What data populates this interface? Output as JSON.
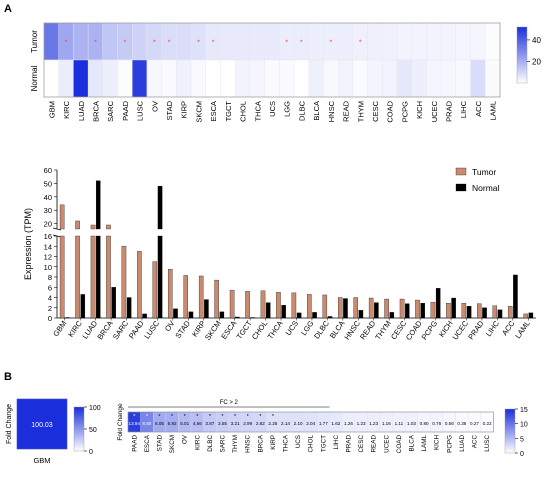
{
  "panel_labels": {
    "a": "A",
    "b": "B"
  },
  "colors": {
    "tumor_bar": "#c98a6e",
    "normal_bar": "#000000",
    "heat_low": "#ffffff",
    "heat_high": "#1a2fdb",
    "star": "#ff3b3b"
  },
  "chart_data": [
    {
      "type": "heatmap",
      "rows": [
        "Tumor",
        "Normal"
      ],
      "columns": [
        "GBM",
        "KIRC",
        "LUAD",
        "BRCA",
        "SARC",
        "PAAD",
        "LUSC",
        "OV",
        "STAD",
        "KIRP",
        "SKCM",
        "ESCA",
        "TGCT",
        "CHOL",
        "THCA",
        "UCS",
        "LGG",
        "DLBC",
        "BLCA",
        "HNSC",
        "READ",
        "THYM",
        "CESC",
        "COAD",
        "PCPG",
        "KICH",
        "UCEC",
        "PRAD",
        "LIHC",
        "ACC",
        "LAML"
      ],
      "values": [
        [
          34,
          22,
          19,
          19,
          14,
          13,
          11,
          9.5,
          8.3,
          8.2,
          7.4,
          5.4,
          5.2,
          5.3,
          5.0,
          4.9,
          4.6,
          4.5,
          4.0,
          4.0,
          3.9,
          3.7,
          3.7,
          3.5,
          3.1,
          2.9,
          2.9,
          2.8,
          2.4,
          2.3,
          0.8
        ],
        [
          0.1,
          4.6,
          52,
          6,
          4,
          0.8,
          48,
          1.8,
          1.2,
          3.6,
          1.2,
          0.2,
          0.1,
          3,
          2.5,
          1,
          1.1,
          0.3,
          3.8,
          1.5,
          3,
          1.1,
          2.8,
          2.9,
          5.8,
          3.9,
          2.3,
          2,
          1.6,
          8.4,
          1
        ]
      ],
      "significant_columns": [
        "KIRC",
        "BRCA",
        "PAAD",
        "OV",
        "STAD",
        "SKCM",
        "ESCA",
        "LGG",
        "DLBC",
        "HNSC",
        "THYM"
      ],
      "colorbar_ticks": [
        20,
        40
      ],
      "colorbar_range": [
        0,
        52
      ]
    },
    {
      "type": "bar",
      "categories": [
        "GBM",
        "KIRC",
        "LUAD",
        "BRCA",
        "SARC",
        "PAAD",
        "LUSC",
        "OV",
        "STAD",
        "KIRP",
        "SKCM",
        "ESCA",
        "TGCT",
        "CHOL",
        "THCA",
        "UCS",
        "LGG",
        "DLBC",
        "BLCA",
        "HNSC",
        "READ",
        "THYM",
        "CESC",
        "COAD",
        "PCPG",
        "KICH",
        "UCEC",
        "PRAD",
        "LIHC",
        "ACC",
        "LAML"
      ],
      "series": [
        {
          "name": "Tumor",
          "values": [
            34,
            22,
            19,
            19,
            14,
            13,
            11,
            9.5,
            8.3,
            8.2,
            7.4,
            5.4,
            5.2,
            5.3,
            5.0,
            4.9,
            4.6,
            4.5,
            4.0,
            4.0,
            3.9,
            3.7,
            3.7,
            3.5,
            3.1,
            2.9,
            2.9,
            2.8,
            2.4,
            2.3,
            0.8
          ]
        },
        {
          "name": "Normal",
          "values": [
            0.1,
            4.6,
            52,
            6,
            4,
            0.8,
            48,
            1.8,
            1.2,
            3.6,
            1.2,
            0.2,
            0.1,
            3,
            2.5,
            1,
            1.1,
            0.3,
            3.8,
            1.5,
            3,
            1.1,
            2.8,
            2.9,
            5.8,
            3.9,
            2.3,
            2,
            1.6,
            8.4,
            1
          ]
        }
      ],
      "ylabel": "Expression (TPM)",
      "y_ticks": [
        0,
        2,
        4,
        6,
        8,
        10,
        12,
        14,
        16,
        20,
        30,
        40,
        50,
        60
      ],
      "ylim": [
        0,
        60
      ],
      "axis_break": {
        "lower": [
          0,
          16
        ],
        "upper": [
          16,
          60
        ]
      },
      "legend": "top-right"
    },
    {
      "type": "heatmap",
      "rows": [
        ""
      ],
      "columns": [
        "GBM"
      ],
      "values": [
        [
          100.03
        ]
      ],
      "value_labels": [
        "100.03"
      ],
      "row_label": "Fold Change",
      "colorbar_ticks": [
        0,
        50,
        100
      ],
      "colorbar_range": [
        0,
        100
      ]
    },
    {
      "type": "heatmap",
      "row_label": "Fold Change",
      "columns": [
        "PAAD",
        "ESCA",
        "STAD",
        "SKCM",
        "OV",
        "KIRC",
        "DLBC",
        "SARC",
        "THYM",
        "HNSC",
        "BRCA",
        "KIRP",
        "THCA",
        "UCS",
        "CHOL",
        "TGCT",
        "LIHC",
        "PRAD",
        "CESC",
        "READ",
        "UCEC",
        "COAD",
        "BLCA",
        "LAML",
        "KICH",
        "PCPG",
        "LUAD",
        "ACC",
        "LUSC"
      ],
      "values": [
        [
          13.94,
          8.8,
          6.05,
          5.92,
          5.01,
          4.66,
          3.87,
          3.55,
          3.21,
          2.99,
          2.82,
          2.25,
          2.14,
          2.1,
          2.04,
          1.77,
          1.62,
          1.26,
          1.23,
          1.23,
          1.16,
          1.11,
          1.03,
          0.8,
          0.76,
          0.56,
          0.36,
          0.27,
          0.22
        ]
      ],
      "value_labels": [
        "13.94",
        "8.80",
        "6.05",
        "5.92",
        "5.01",
        "4.66",
        "3.87",
        "3.55",
        "3.21",
        "2.99",
        "2.82",
        "2.25",
        "2.14",
        "2.10",
        "2.04",
        "1.77",
        "1.62",
        "1.26",
        "1.23",
        "1.23",
        "1.16",
        "1.11",
        "1.03",
        "0.80",
        "0.76",
        "0.56",
        "0.36",
        "0.27",
        "0.22"
      ],
      "significant_columns": [
        "PAAD",
        "ESCA",
        "STAD",
        "SKCM",
        "OV",
        "KIRC",
        "DLBC",
        "SARC",
        "THYM",
        "HNSC",
        "BRCA",
        "KIRP"
      ],
      "bracket_label": "FC > 2",
      "bracket_span": [
        "PAAD",
        "TGCT"
      ],
      "colorbar_ticks": [
        0,
        5,
        10,
        15
      ],
      "colorbar_range": [
        0,
        15
      ]
    }
  ]
}
